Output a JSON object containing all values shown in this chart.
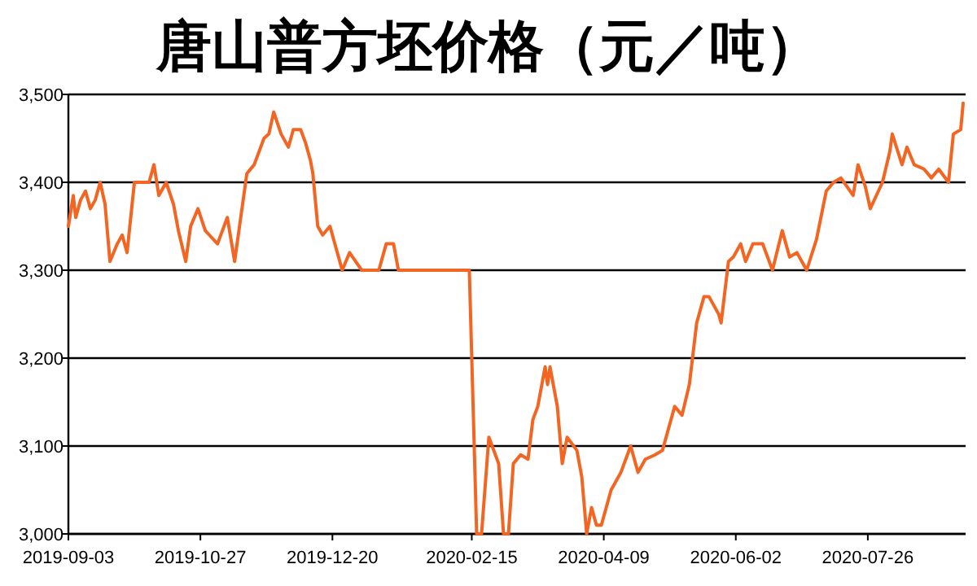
{
  "chart_data": {
    "type": "line",
    "title": "唐山普方坯价格（元／吨）",
    "x": [
      "2019-09-03",
      "2019-09-05",
      "2019-09-06",
      "2019-09-08",
      "2019-09-10",
      "2019-09-12",
      "2019-09-14",
      "2019-09-16",
      "2019-09-18",
      "2019-09-20",
      "2019-09-23",
      "2019-09-25",
      "2019-09-27",
      "2019-09-30",
      "2019-10-06",
      "2019-10-08",
      "2019-10-10",
      "2019-10-13",
      "2019-10-16",
      "2019-10-18",
      "2019-10-21",
      "2019-10-23",
      "2019-10-26",
      "2019-10-29",
      "2019-11-03",
      "2019-11-07",
      "2019-11-10",
      "2019-11-15",
      "2019-11-18",
      "2019-11-22",
      "2019-11-24",
      "2019-11-26",
      "2019-11-29",
      "2019-12-02",
      "2019-12-04",
      "2019-12-07",
      "2019-12-09",
      "2019-12-11",
      "2019-12-12",
      "2019-12-14",
      "2019-12-16",
      "2019-12-19",
      "2019-12-24",
      "2019-12-27",
      "2020-01-01",
      "2020-01-08",
      "2020-01-11",
      "2020-01-14",
      "2020-01-16",
      "2020-02-14",
      "2020-02-17",
      "2020-02-19",
      "2020-02-22",
      "2020-02-26",
      "2020-02-28",
      "2020-03-01",
      "2020-03-03",
      "2020-03-06",
      "2020-03-09",
      "2020-03-11",
      "2020-03-13",
      "2020-03-16",
      "2020-03-17",
      "2020-03-18",
      "2020-03-21",
      "2020-03-23",
      "2020-03-25",
      "2020-03-29",
      "2020-03-31",
      "2020-04-02",
      "2020-04-04",
      "2020-04-06",
      "2020-04-08",
      "2020-04-12",
      "2020-04-16",
      "2020-04-20",
      "2020-04-23",
      "2020-04-26",
      "2020-04-30",
      "2020-05-03",
      "2020-05-08",
      "2020-05-11",
      "2020-05-14",
      "2020-05-17",
      "2020-05-20",
      "2020-05-22",
      "2020-05-26",
      "2020-05-27",
      "2020-05-30",
      "2020-06-01",
      "2020-06-04",
      "2020-06-06",
      "2020-06-09",
      "2020-06-13",
      "2020-06-17",
      "2020-06-21",
      "2020-06-24",
      "2020-06-27",
      "2020-07-01",
      "2020-07-05",
      "2020-07-09",
      "2020-07-12",
      "2020-07-15",
      "2020-07-20",
      "2020-07-22",
      "2020-07-25",
      "2020-07-27",
      "2020-08-01",
      "2020-08-04",
      "2020-08-05",
      "2020-08-09",
      "2020-08-11",
      "2020-08-14",
      "2020-08-18",
      "2020-08-21",
      "2020-08-24",
      "2020-08-28",
      "2020-08-30",
      "2020-09-02",
      "2020-09-03"
    ],
    "series": [
      {
        "color": "#f26522",
        "values": [
          3350,
          3385,
          3360,
          3380,
          3390,
          3370,
          3380,
          3400,
          3375,
          3310,
          3330,
          3340,
          3320,
          3400,
          3400,
          3420,
          3385,
          3400,
          3375,
          3345,
          3310,
          3350,
          3370,
          3345,
          3330,
          3360,
          3310,
          3410,
          3420,
          3450,
          3455,
          3480,
          3455,
          3440,
          3460,
          3460,
          3445,
          3425,
          3410,
          3350,
          3340,
          3350,
          3300,
          3320,
          3300,
          3300,
          3330,
          3330,
          3300,
          3300,
          3000,
          3000,
          3110,
          3080,
          3000,
          3000,
          3080,
          3090,
          3085,
          3130,
          3145,
          3190,
          3170,
          3190,
          3145,
          3080,
          3110,
          3095,
          3065,
          3000,
          3030,
          3010,
          3010,
          3050,
          3070,
          3100,
          3070,
          3085,
          3090,
          3095,
          3145,
          3135,
          3170,
          3240,
          3270,
          3270,
          3250,
          3240,
          3310,
          3315,
          3330,
          3310,
          3330,
          3330,
          3300,
          3345,
          3315,
          3320,
          3300,
          3335,
          3390,
          3400,
          3405,
          3385,
          3420,
          3395,
          3370,
          3400,
          3435,
          3455,
          3420,
          3440,
          3420,
          3415,
          3405,
          3415,
          3400,
          3455,
          3460,
          3490
        ]
      }
    ],
    "xlim": [
      "2019-09-03",
      "2020-09-04"
    ],
    "xticks": [
      "2019-09-03",
      "2019-10-27",
      "2019-12-20",
      "2020-02-15",
      "2020-04-09",
      "2020-06-02",
      "2020-07-26"
    ],
    "ylim": [
      3000,
      3500
    ],
    "yticks": [
      {
        "value": 3000,
        "label": "3,000"
      },
      {
        "value": 3100,
        "label": "3,100"
      },
      {
        "value": 3200,
        "label": "3,200"
      },
      {
        "value": 3300,
        "label": "3,300"
      },
      {
        "value": 3400,
        "label": "3,400"
      },
      {
        "value": 3500,
        "label": "3,500"
      }
    ],
    "grid": "y"
  }
}
